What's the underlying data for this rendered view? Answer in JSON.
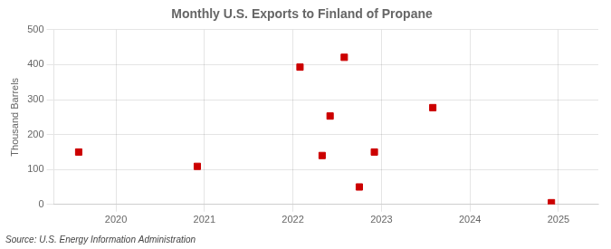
{
  "chart_data": {
    "type": "scatter",
    "title": "Monthly U.S. Exports to Finland of Propane",
    "y_label": "Thousand Barrels",
    "annotation": "Source: U.S. Energy Information Administration",
    "x": [
      2019.58,
      2020.92,
      2022.08,
      2022.33,
      2022.42,
      2022.58,
      2022.75,
      2022.92,
      2023.58,
      2024.92
    ],
    "values": [
      150,
      109,
      393,
      140,
      253,
      421,
      50,
      150,
      277,
      5
    ],
    "color": "#cc0000",
    "marker": "square",
    "xlim": [
      2019.3,
      2025.45
    ],
    "xticks": [
      2020,
      2021,
      2022,
      2023,
      2024,
      2025
    ],
    "ylim": [
      0,
      500
    ],
    "yticks": [
      0,
      100,
      200,
      300,
      400,
      500
    ],
    "grid": true
  }
}
